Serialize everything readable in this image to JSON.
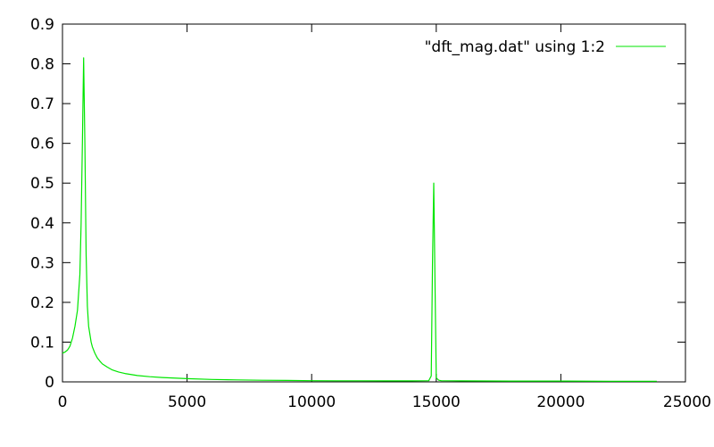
{
  "chart_data": {
    "type": "line",
    "title": "",
    "xlabel": "",
    "ylabel": "",
    "xlim": [
      0,
      25000
    ],
    "ylim": [
      0,
      0.9
    ],
    "x_ticks": [
      "0",
      "5000",
      "10000",
      "15000",
      "20000",
      "25000"
    ],
    "y_ticks": [
      "0",
      "0.1",
      "0.2",
      "0.3",
      "0.4",
      "0.5",
      "0.6",
      "0.7",
      "0.8",
      "0.9"
    ],
    "grid": false,
    "legend_position": "top-right",
    "series": [
      {
        "name": "\"dft_mag.dat\" using 1:2",
        "color": "#00e600",
        "x": [
          0,
          100,
          200,
          300,
          400,
          500,
          600,
          700,
          750,
          800,
          850,
          900,
          950,
          1000,
          1050,
          1100,
          1150,
          1200,
          1300,
          1400,
          1500,
          1600,
          1800,
          2000,
          2250,
          2500,
          3000,
          3500,
          4000,
          5000,
          6000,
          7000,
          8000,
          9000,
          10000,
          11000,
          12000,
          13000,
          14000,
          14700,
          14800,
          14850,
          14900,
          14950,
          15000,
          15100,
          15200,
          16000,
          18000,
          20000,
          22000,
          23850
        ],
        "y": [
          0.072,
          0.075,
          0.08,
          0.09,
          0.11,
          0.14,
          0.18,
          0.27,
          0.4,
          0.6,
          0.815,
          0.6,
          0.32,
          0.19,
          0.14,
          0.12,
          0.1,
          0.088,
          0.072,
          0.06,
          0.052,
          0.045,
          0.037,
          0.03,
          0.025,
          0.021,
          0.016,
          0.013,
          0.011,
          0.008,
          0.006,
          0.005,
          0.004,
          0.0035,
          0.003,
          0.0028,
          0.0026,
          0.0025,
          0.0025,
          0.003,
          0.015,
          0.3,
          0.5,
          0.25,
          0.01,
          0.004,
          0.003,
          0.0025,
          0.002,
          0.002,
          0.0015,
          0.0015
        ]
      }
    ]
  }
}
